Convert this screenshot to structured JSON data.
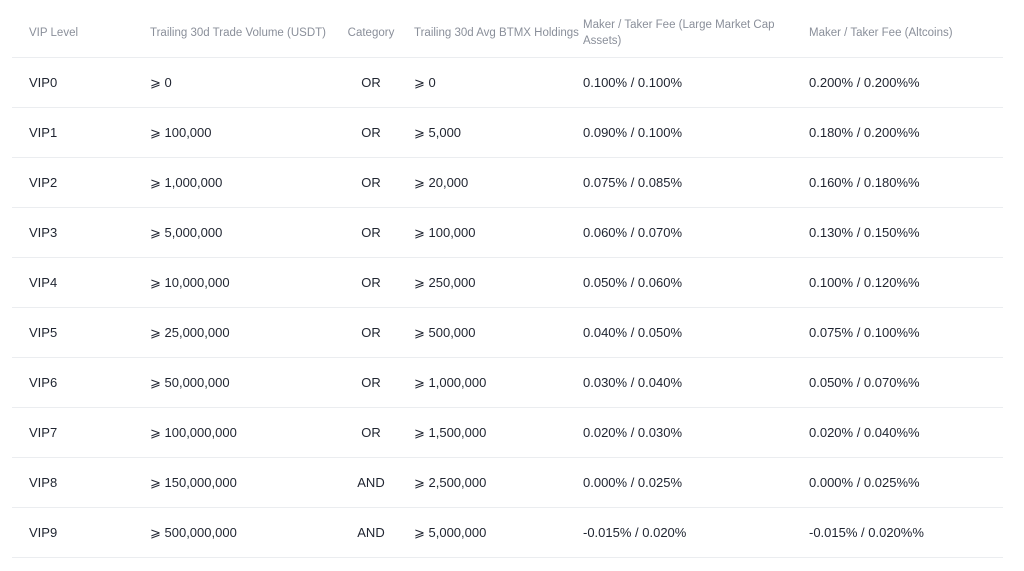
{
  "table": {
    "headers": [
      "VIP Level",
      "Trailing 30d Trade Volume (USDT)",
      "Category",
      "Trailing 30d Avg BTMX Holdings",
      "Maker / Taker Fee (Large Market Cap Assets)",
      "Maker / Taker Fee (Altcoins)"
    ],
    "rows": [
      [
        "VIP0",
        "⩾ 0",
        "OR",
        "⩾ 0",
        "0.100% / 0.100%",
        "0.200% / 0.200%%"
      ],
      [
        "VIP1",
        "⩾ 100,000",
        "OR",
        "⩾ 5,000",
        "0.090% / 0.100%",
        "0.180% / 0.200%%"
      ],
      [
        "VIP2",
        "⩾ 1,000,000",
        "OR",
        "⩾ 20,000",
        "0.075% / 0.085%",
        "0.160% / 0.180%%"
      ],
      [
        "VIP3",
        "⩾ 5,000,000",
        "OR",
        "⩾ 100,000",
        "0.060% / 0.070%",
        "0.130% / 0.150%%"
      ],
      [
        "VIP4",
        "⩾ 10,000,000",
        "OR",
        "⩾ 250,000",
        "0.050% / 0.060%",
        "0.100% / 0.120%%"
      ],
      [
        "VIP5",
        "⩾ 25,000,000",
        "OR",
        "⩾ 500,000",
        "0.040% / 0.050%",
        "0.075% / 0.100%%"
      ],
      [
        "VIP6",
        "⩾ 50,000,000",
        "OR",
        "⩾ 1,000,000",
        "0.030% / 0.040%",
        "0.050% / 0.070%%"
      ],
      [
        "VIP7",
        "⩾ 100,000,000",
        "OR",
        "⩾ 1,500,000",
        "0.020% / 0.030%",
        "0.020% / 0.040%%"
      ],
      [
        "VIP8",
        "⩾ 150,000,000",
        "AND",
        "⩾ 2,500,000",
        "0.000% / 0.025%",
        "0.000% / 0.025%%"
      ],
      [
        "VIP9",
        "⩾ 500,000,000",
        "AND",
        "⩾ 5,000,000",
        "-0.015% / 0.020%",
        "-0.015% / 0.020%%"
      ]
    ]
  }
}
